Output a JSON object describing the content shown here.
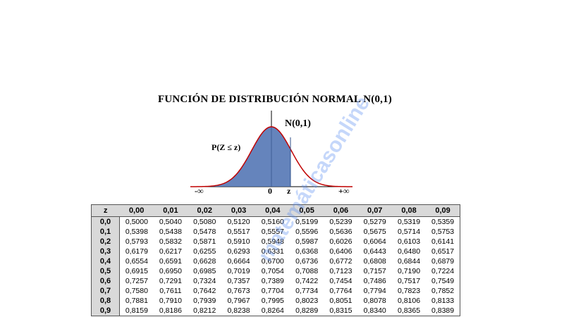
{
  "title": "FUNCIÓN DE DISTRIBUCIÓN NORMAL N(0,1)",
  "figure": {
    "curve_label": "N(0,1)",
    "area_label": "P(Z ≤ z)",
    "neg_inf": "-∞",
    "zero": "0",
    "z": "z",
    "pos_inf": "+∞",
    "curve_color": "#c00000",
    "fill_color": "#4a6fb0"
  },
  "table": {
    "header": [
      "z",
      "0,00",
      "0,01",
      "0,02",
      "0,03",
      "0,04",
      "0,05",
      "0,06",
      "0,07",
      "0,08",
      "0,09"
    ],
    "rows": [
      {
        "z": "0,0",
        "values": [
          "0,5000",
          "0,5040",
          "0,5080",
          "0,5120",
          "0,5160",
          "0,5199",
          "0,5239",
          "0,5279",
          "0,5319",
          "0,5359"
        ]
      },
      {
        "z": "0,1",
        "values": [
          "0,5398",
          "0,5438",
          "0,5478",
          "0,5517",
          "0,5557",
          "0,5596",
          "0,5636",
          "0,5675",
          "0,5714",
          "0,5753"
        ]
      },
      {
        "z": "0,2",
        "values": [
          "0,5793",
          "0,5832",
          "0,5871",
          "0,5910",
          "0,5948",
          "0,5987",
          "0,6026",
          "0,6064",
          "0,6103",
          "0,6141"
        ]
      },
      {
        "z": "0,3",
        "values": [
          "0,6179",
          "0,6217",
          "0,6255",
          "0,6293",
          "0,6331",
          "0,6368",
          "0,6406",
          "0,6443",
          "0,6480",
          "0,6517"
        ]
      },
      {
        "z": "0,4",
        "values": [
          "0,6554",
          "0,6591",
          "0,6628",
          "0,6664",
          "0,6700",
          "0,6736",
          "0,6772",
          "0,6808",
          "0,6844",
          "0,6879"
        ]
      },
      {
        "z": "0,5",
        "values": [
          "0,6915",
          "0,6950",
          "0,6985",
          "0,7019",
          "0,7054",
          "0,7088",
          "0,7123",
          "0,7157",
          "0,7190",
          "0,7224"
        ]
      },
      {
        "z": "0,6",
        "values": [
          "0,7257",
          "0,7291",
          "0,7324",
          "0,7357",
          "0,7389",
          "0,7422",
          "0,7454",
          "0,7486",
          "0,7517",
          "0,7549"
        ]
      },
      {
        "z": "0,7",
        "values": [
          "0,7580",
          "0,7611",
          "0,7642",
          "0,7673",
          "0,7704",
          "0,7734",
          "0,7764",
          "0,7794",
          "0,7823",
          "0,7852"
        ]
      },
      {
        "z": "0,8",
        "values": [
          "0,7881",
          "0,7910",
          "0,7939",
          "0,7967",
          "0,7995",
          "0,8023",
          "0,8051",
          "0,8078",
          "0,8106",
          "0,8133"
        ]
      },
      {
        "z": "0,9",
        "values": [
          "0,8159",
          "0,8186",
          "0,8212",
          "0,8238",
          "0,8264",
          "0,8289",
          "0,8315",
          "0,8340",
          "0,8365",
          "0,8389"
        ]
      }
    ]
  }
}
